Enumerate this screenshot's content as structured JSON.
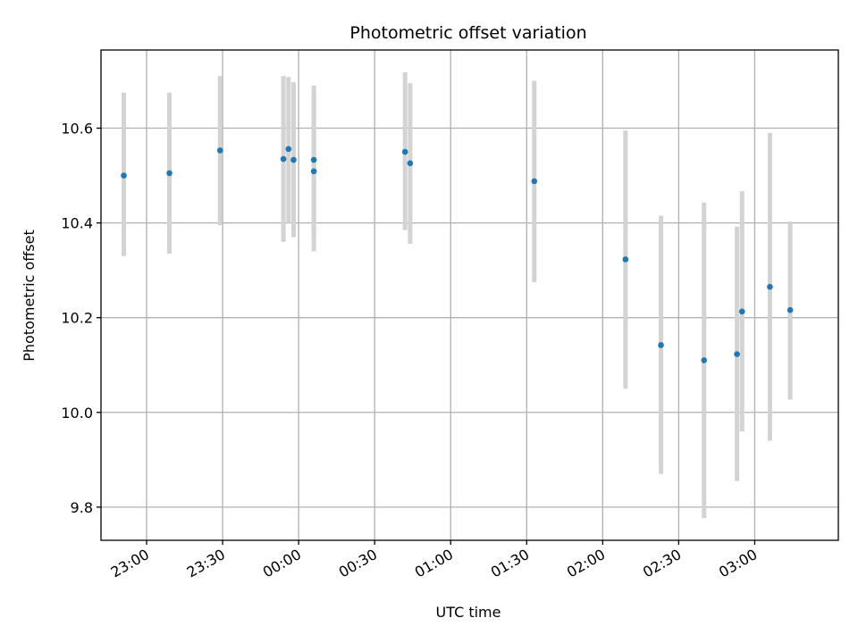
{
  "chart_data": {
    "type": "scatter",
    "title": "Photometric offset variation",
    "xlabel": "UTC time",
    "ylabel": "Photometric offset",
    "x_axis_kind": "time",
    "xlim": [
      "22:42",
      "03:33"
    ],
    "ylim": [
      9.73,
      10.765
    ],
    "grid": true,
    "x_ticks": [
      "23:00",
      "23:30",
      "00:00",
      "00:30",
      "01:00",
      "01:30",
      "02:00",
      "02:30",
      "03:00"
    ],
    "y_ticks": [
      "9.8",
      "10.0",
      "10.2",
      "10.4",
      "10.6"
    ],
    "series": [
      {
        "color": "#1f77b4",
        "errorbar_color": "#d3d3d3",
        "points": [
          {
            "x": "22:51",
            "y": 10.5,
            "ylow": 10.33,
            "yhigh": 10.675
          },
          {
            "x": "23:09",
            "y": 10.505,
            "ylow": 10.335,
            "yhigh": 10.675
          },
          {
            "x": "23:29",
            "y": 10.553,
            "ylow": 10.395,
            "yhigh": 10.71
          },
          {
            "x": "23:54",
            "y": 10.535,
            "ylow": 10.36,
            "yhigh": 10.71
          },
          {
            "x": "23:56",
            "y": 10.556,
            "ylow": 10.4,
            "yhigh": 10.708
          },
          {
            "x": "23:58",
            "y": 10.533,
            "ylow": 10.37,
            "yhigh": 10.697
          },
          {
            "x": "00:06",
            "y": 10.533,
            "ylow": 10.37,
            "yhigh": 10.69
          },
          {
            "x": "00:06",
            "y": 10.509,
            "ylow": 10.34,
            "yhigh": 10.68
          },
          {
            "x": "00:42",
            "y": 10.55,
            "ylow": 10.385,
            "yhigh": 10.718
          },
          {
            "x": "00:44",
            "y": 10.526,
            "ylow": 10.356,
            "yhigh": 10.695
          },
          {
            "x": "01:33",
            "y": 10.488,
            "ylow": 10.275,
            "yhigh": 10.7
          },
          {
            "x": "02:09",
            "y": 10.323,
            "ylow": 10.05,
            "yhigh": 10.595
          },
          {
            "x": "02:23",
            "y": 10.142,
            "ylow": 9.87,
            "yhigh": 10.415
          },
          {
            "x": "02:40",
            "y": 10.11,
            "ylow": 9.777,
            "yhigh": 10.443
          },
          {
            "x": "02:53",
            "y": 10.123,
            "ylow": 9.855,
            "yhigh": 10.392
          },
          {
            "x": "02:55",
            "y": 10.213,
            "ylow": 9.96,
            "yhigh": 10.467
          },
          {
            "x": "03:06",
            "y": 10.265,
            "ylow": 9.94,
            "yhigh": 10.59
          },
          {
            "x": "03:14",
            "y": 10.216,
            "ylow": 10.027,
            "yhigh": 10.403
          }
        ]
      }
    ]
  }
}
